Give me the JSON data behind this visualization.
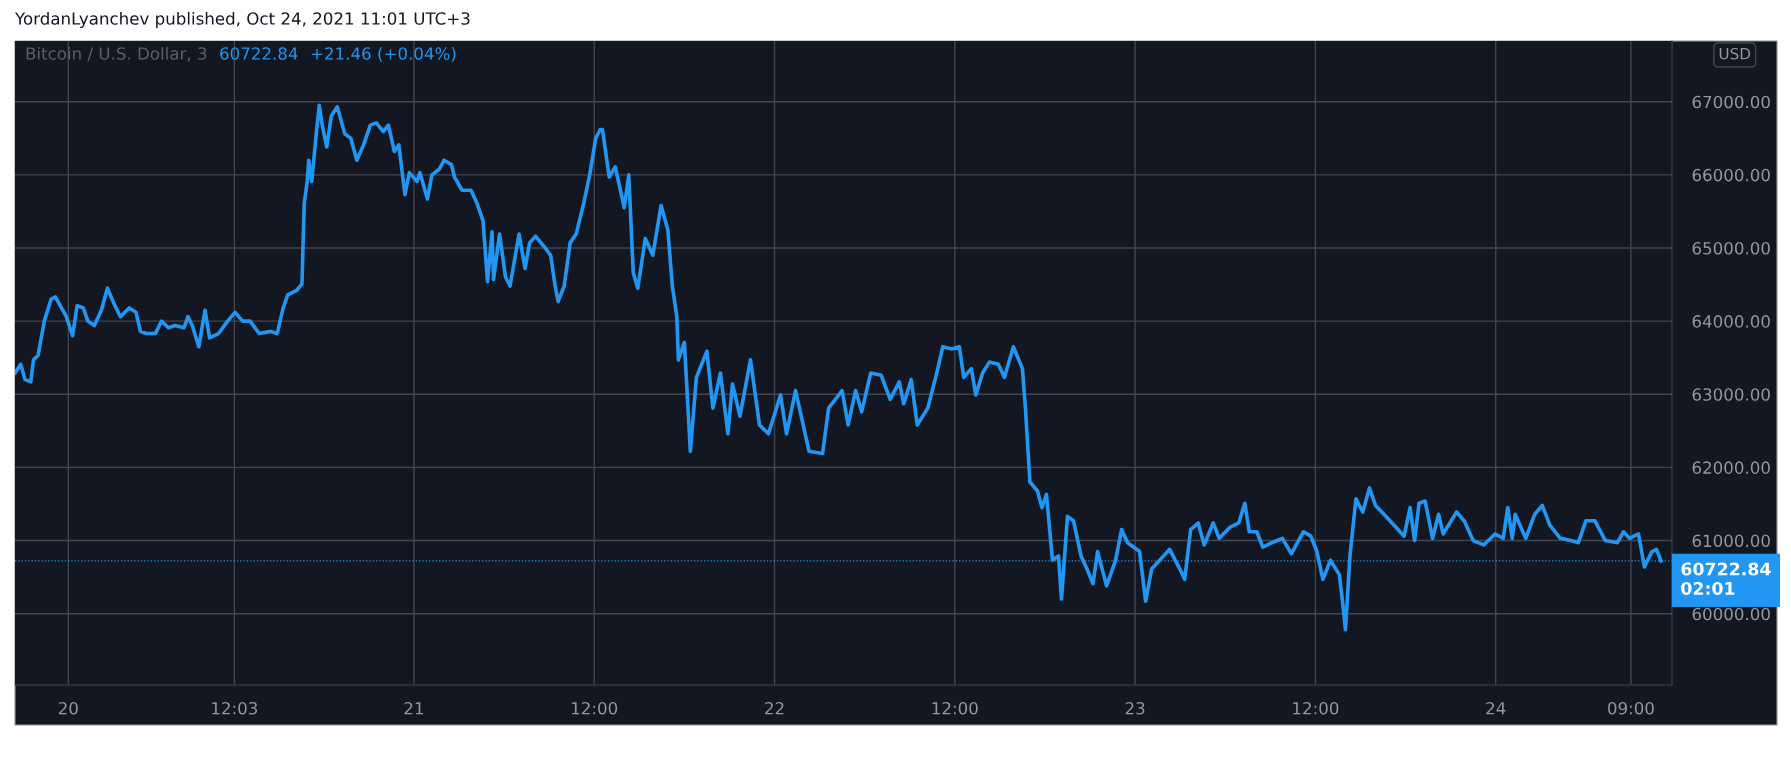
{
  "chart_data": {
    "type": "line",
    "title": "YordanLyanchev published, Oct 24, 2021 11:01 UTC+3",
    "subtitle": "Bitcoin / U.S. Dollar, 3",
    "ylabel": "USD",
    "annotations": [
      "60722.84",
      "+21.46 (+0.04%)"
    ],
    "x": [
      "2021-10-19T21:27",
      "2021-10-19T21:50",
      "2021-10-19T22:07",
      "2021-10-19T22:30",
      "2021-10-19T22:41",
      "2021-10-19T22:59",
      "2021-10-19T23:24",
      "2021-10-19T23:51",
      "2021-10-20T00:08",
      "2021-10-20T00:52",
      "2021-10-20T01:17",
      "2021-10-20T01:35",
      "2021-10-20T02:00",
      "2021-10-20T02:18",
      "2021-10-20T02:44",
      "2021-10-20T03:12",
      "2021-10-20T03:36",
      "2021-10-20T04:02",
      "2021-10-20T04:28",
      "2021-10-20T05:03",
      "2021-10-20T05:30",
      "2021-10-20T05:48",
      "2021-10-20T06:12",
      "2021-10-20T06:48",
      "2021-10-20T07:12",
      "2021-10-20T07:40",
      "2021-10-20T08:06",
      "2021-10-20T08:42",
      "2021-10-20T08:58",
      "2021-10-20T09:15",
      "2021-10-20T09:41",
      "2021-10-20T10:06",
      "2021-10-20T10:24",
      "2021-10-20T11:00",
      "2021-10-20T11:36",
      "2021-10-20T12:06",
      "2021-10-20T12:36",
      "2021-10-20T13:06",
      "2021-10-20T13:42",
      "2021-10-20T14:27",
      "2021-10-20T14:54",
      "2021-10-20T15:18",
      "2021-10-20T15:36",
      "2021-10-20T16:12",
      "2021-10-20T16:33",
      "2021-10-20T16:42",
      "2021-10-20T16:54",
      "2021-10-20T17:00",
      "2021-10-20T17:12",
      "2021-10-20T17:30",
      "2021-10-20T17:42",
      "2021-10-20T17:54",
      "2021-10-20T18:12",
      "2021-10-20T18:30",
      "2021-10-20T18:54",
      "2021-10-20T19:24",
      "2021-10-20T19:48",
      "2021-10-20T20:12",
      "2021-10-20T20:39",
      "2021-10-20T21:06",
      "2021-10-20T21:30",
      "2021-10-20T21:58",
      "2021-10-20T22:18",
      "2021-10-20T22:42",
      "2021-10-20T23:00",
      "2021-10-20T23:24",
      "2021-10-20T23:42",
      "2021-10-21T00:12",
      "2021-10-21T00:24",
      "2021-10-21T00:54",
      "2021-10-21T01:12",
      "2021-10-21T01:42",
      "2021-10-21T02:00",
      "2021-10-21T02:30",
      "2021-10-21T02:42",
      "2021-10-21T03:12",
      "2021-10-21T03:48",
      "2021-10-21T04:12",
      "2021-10-21T04:36",
      "2021-10-21T04:54",
      "2021-10-21T05:12",
      "2021-10-21T05:18",
      "2021-10-21T05:42",
      "2021-10-21T06:06",
      "2021-10-21T06:24",
      "2021-10-21T06:42",
      "2021-10-21T07:00",
      "2021-10-21T07:24",
      "2021-10-21T07:42",
      "2021-10-21T08:06",
      "2021-10-21T08:42",
      "2021-10-21T09:06",
      "2021-10-21T09:24",
      "2021-10-21T09:36",
      "2021-10-21T10:00",
      "2021-10-21T10:24",
      "2021-10-21T10:48",
      "2021-10-21T11:18",
      "2021-10-21T11:42",
      "2021-10-21T12:06",
      "2021-10-21T12:24",
      "2021-10-21T12:33",
      "2021-10-21T13:00",
      "2021-10-21T13:24",
      "2021-10-21T14:00",
      "2021-10-21T14:18",
      "2021-10-21T14:36",
      "2021-10-21T14:54",
      "2021-10-21T15:24",
      "2021-10-21T15:54",
      "2021-10-21T16:27",
      "2021-10-21T16:54",
      "2021-10-21T17:12",
      "2021-10-21T17:30",
      "2021-10-21T17:36",
      "2021-10-21T18:00",
      "2021-10-21T18:24",
      "2021-10-21T18:48",
      "2021-10-21T19:30",
      "2021-10-21T19:54",
      "2021-10-21T20:24",
      "2021-10-21T20:54",
      "2021-10-21T21:12",
      "2021-10-21T21:42",
      "2021-10-21T22:24",
      "2021-10-21T23:00",
      "2021-10-21T23:36",
      "2021-10-22T00:24",
      "2021-10-22T00:48",
      "2021-10-22T01:24",
      "2021-10-22T02:18",
      "2021-10-22T03:12",
      "2021-10-22T03:36",
      "2021-10-22T04:30",
      "2021-10-22T04:54",
      "2021-10-22T05:24",
      "2021-10-22T05:48",
      "2021-10-22T06:24",
      "2021-10-22T07:06",
      "2021-10-22T07:42",
      "2021-10-22T08:18",
      "2021-10-22T08:36",
      "2021-10-22T09:06",
      "2021-10-22T09:30",
      "2021-10-22T10:12",
      "2021-10-22T10:48",
      "2021-10-22T11:12",
      "2021-10-22T11:48",
      "2021-10-22T12:18",
      "2021-10-22T12:36",
      "2021-10-22T13:06",
      "2021-10-22T13:24",
      "2021-10-22T13:51",
      "2021-10-22T14:18",
      "2021-10-22T14:54",
      "2021-10-22T15:18",
      "2021-10-22T15:54",
      "2021-10-22T16:30",
      "2021-10-22T16:42",
      "2021-10-22T17:00",
      "2021-10-22T17:30",
      "2021-10-22T17:48",
      "2021-10-22T18:06",
      "2021-10-22T18:30",
      "2021-10-22T18:54",
      "2021-10-22T19:06",
      "2021-10-22T19:30",
      "2021-10-22T19:54",
      "2021-10-22T20:24",
      "2021-10-22T20:48",
      "2021-10-22T21:12",
      "2021-10-22T21:30",
      "2021-10-22T22:06",
      "2021-10-22T22:42",
      "2021-10-22T23:06",
      "2021-10-22T23:30",
      "2021-10-23T00:18",
      "2021-10-23T00:42",
      "2021-10-23T01:06",
      "2021-10-23T01:54",
      "2021-10-23T02:18",
      "2021-10-23T03:06",
      "2021-10-23T03:18",
      "2021-10-23T03:42",
      "2021-10-23T04:12",
      "2021-10-23T04:36",
      "2021-10-23T05:12",
      "2021-10-23T05:36",
      "2021-10-23T06:18",
      "2021-10-23T06:54",
      "2021-10-23T07:18",
      "2021-10-23T07:36",
      "2021-10-23T08:06",
      "2021-10-23T08:30",
      "2021-10-23T09:06",
      "2021-10-23T09:48",
      "2021-10-23T10:24",
      "2021-10-23T11:12",
      "2021-10-23T11:42",
      "2021-10-23T12:06",
      "2021-10-23T12:30",
      "2021-10-23T13:00",
      "2021-10-23T13:36",
      "2021-10-23T13:51",
      "2021-10-23T14:00",
      "2021-10-23T14:18",
      "2021-10-23T14:42",
      "2021-10-23T15:09",
      "2021-10-23T15:36",
      "2021-10-23T16:00",
      "2021-10-23T16:42",
      "2021-10-23T17:30",
      "2021-10-23T17:54",
      "2021-10-23T18:18",
      "2021-10-23T18:36",
      "2021-10-23T18:54",
      "2021-10-23T19:18",
      "2021-10-23T19:48",
      "2021-10-23T20:12",
      "2021-10-23T20:30",
      "2021-10-23T21:24",
      "2021-10-23T21:54",
      "2021-10-23T22:30",
      "2021-10-23T23:12",
      "2021-10-23T23:58",
      "2021-10-24T00:30",
      "2021-10-24T00:48",
      "2021-10-24T01:06",
      "2021-10-24T01:18",
      "2021-10-24T02:00",
      "2021-10-24T02:36",
      "2021-10-24T03:06",
      "2021-10-24T03:36",
      "2021-10-24T04:18",
      "2021-10-24T05:00",
      "2021-10-24T05:30",
      "2021-10-24T06:00",
      "2021-10-24T06:36",
      "2021-10-24T07:18",
      "2021-10-24T08:06",
      "2021-10-24T08:30",
      "2021-10-24T08:54",
      "2021-10-24T09:30",
      "2021-10-24T09:54",
      "2021-10-24T10:24",
      "2021-10-24T10:42",
      "2021-10-24T11:00"
    ],
    "series": [
      {
        "color": "#2196f3",
        "values": [
          63290,
          63410,
          63200,
          63170,
          63470,
          63530,
          64000,
          64300,
          64330,
          64060,
          63800,
          64210,
          64180,
          64000,
          63940,
          64150,
          64450,
          64240,
          64060,
          64180,
          64120,
          63860,
          63830,
          63830,
          64000,
          63910,
          63940,
          63910,
          64060,
          63940,
          63650,
          64150,
          63770,
          63830,
          64000,
          64120,
          64000,
          64000,
          63830,
          63860,
          63830,
          64180,
          64360,
          64420,
          64510,
          65610,
          65910,
          66200,
          65910,
          66560,
          66950,
          66680,
          66380,
          66800,
          66930,
          66560,
          66500,
          66200,
          66410,
          66680,
          66710,
          66590,
          66680,
          66320,
          66410,
          65730,
          66030,
          65910,
          66030,
          65670,
          66000,
          66080,
          66200,
          66140,
          65970,
          65790,
          65790,
          65610,
          65370,
          64540,
          65220,
          64570,
          65190,
          64600,
          64480,
          64840,
          65190,
          64720,
          65070,
          65160,
          65010,
          64900,
          64480,
          64270,
          64480,
          65070,
          65190,
          65610,
          66000,
          66500,
          66620,
          66620,
          65970,
          66110,
          65550,
          66000,
          64660,
          64450,
          65130,
          64900,
          65580,
          65250,
          64480,
          64060,
          63470,
          63710,
          62220,
          63230,
          63590,
          62810,
          63290,
          62460,
          63140,
          62700,
          63470,
          62580,
          62460,
          62990,
          62460,
          63050,
          62220,
          62190,
          62810,
          63050,
          62580,
          63050,
          62760,
          63290,
          63260,
          62930,
          63170,
          62870,
          63200,
          62580,
          62810,
          63290,
          63650,
          63620,
          63650,
          63230,
          63350,
          62990,
          63290,
          63440,
          63410,
          63230,
          63650,
          63350,
          62810,
          61800,
          61680,
          61450,
          61630,
          60730,
          60790,
          60200,
          61330,
          61270,
          60790,
          60610,
          60410,
          60850,
          60380,
          60730,
          61150,
          60970,
          60850,
          60170,
          60610,
          60790,
          60880,
          60560,
          60470,
          61150,
          61240,
          60940,
          61240,
          61030,
          61180,
          61240,
          61510,
          61120,
          61120,
          60910,
          60970,
          61030,
          60820,
          61120,
          61060,
          60850,
          60470,
          60730,
          60530,
          60080,
          59780,
          60790,
          61570,
          61390,
          61720,
          61480,
          61330,
          61150,
          61060,
          61450,
          61000,
          61510,
          61540,
          61030,
          61360,
          61090,
          61390,
          61270,
          61000,
          60940,
          61090,
          61030,
          61450,
          61030,
          61360,
          61030,
          61360,
          61480,
          61210,
          61030,
          61000,
          60970,
          61270,
          61270,
          61000,
          60970,
          61120,
          61030,
          61090,
          60640,
          60850,
          60880,
          60722.84
        ]
      }
    ],
    "xlim": [
      "2021-10-19T21:27",
      "2021-10-24T11:44"
    ],
    "ylim": [
      59025,
      67830
    ],
    "xticks": [
      {
        "value": "2021-10-20T01:00",
        "label": "20"
      },
      {
        "value": "2021-10-20T12:03",
        "label": "12:03"
      },
      {
        "value": "2021-10-21",
        "label": "21"
      },
      {
        "value": "2021-10-21T12:00",
        "label": "12:00"
      },
      {
        "value": "2021-10-22",
        "label": "22"
      },
      {
        "value": "2021-10-22T12:00",
        "label": "12:00"
      },
      {
        "value": "2021-10-23",
        "label": "23"
      },
      {
        "value": "2021-10-23T12:00",
        "label": "12:00"
      },
      {
        "value": "2021-10-24",
        "label": "24"
      },
      {
        "value": "2021-10-24T09:00",
        "label": "09:00"
      }
    ],
    "yticks": [
      {
        "value": 60000,
        "label": "60000.00"
      },
      {
        "value": 61000,
        "label": "61000.00"
      },
      {
        "value": 62000,
        "label": "62000.00"
      },
      {
        "value": 63000,
        "label": "63000.00"
      },
      {
        "value": 64000,
        "label": "64000.00"
      },
      {
        "value": 65000,
        "label": "65000.00"
      },
      {
        "value": 66000,
        "label": "66000.00"
      },
      {
        "value": 67000,
        "label": "67000.00"
      }
    ],
    "grid": true,
    "line_style": "solid",
    "ref_lines": [
      {
        "axis": "y",
        "value": 60722.84,
        "label": "60722.84\n02:01",
        "color": "#2196f3",
        "line_style": "dotted"
      }
    ]
  }
}
